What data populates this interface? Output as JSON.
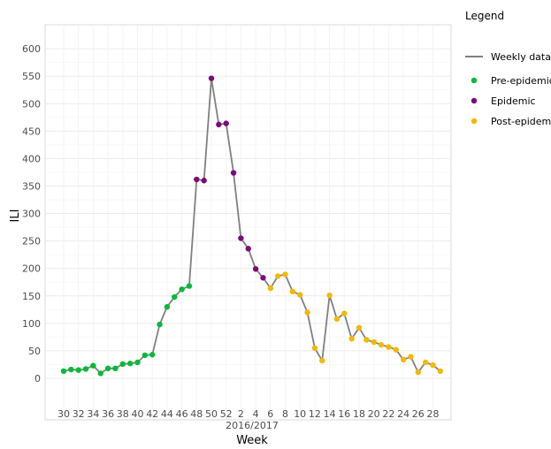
{
  "chart_data": {
    "type": "line",
    "title": "",
    "xlabel": "Week",
    "xlabel_sub": "2016/2017",
    "ylabel": "ILI",
    "ylim": [
      -50,
      650
    ],
    "yticks": [
      0,
      50,
      100,
      150,
      200,
      250,
      300,
      350,
      400,
      450,
      500,
      550,
      600
    ],
    "grid": true,
    "legend_position": "right",
    "legend_title": "Legend",
    "x_labels": [
      "30",
      "32",
      "34",
      "36",
      "38",
      "40",
      "42",
      "44",
      "46",
      "48",
      "50",
      "52",
      "2",
      "4",
      "6",
      "8",
      "10",
      "12",
      "14",
      "16",
      "18",
      "20",
      "22",
      "24",
      "26",
      "28"
    ],
    "line_series": {
      "name": "Weekly data",
      "color": "#808080",
      "weeks": [
        "30",
        "31",
        "32",
        "33",
        "34",
        "35",
        "36",
        "37",
        "38",
        "39",
        "40",
        "41",
        "42",
        "43",
        "44",
        "45",
        "46",
        "47",
        "48",
        "49",
        "50",
        "51",
        "52",
        "1",
        "2",
        "3",
        "4",
        "5",
        "6",
        "7",
        "8",
        "9",
        "10",
        "11",
        "12",
        "13",
        "14",
        "15",
        "16",
        "17",
        "18",
        "19",
        "20",
        "21",
        "22",
        "23",
        "24",
        "25",
        "26",
        "27",
        "28",
        "29"
      ],
      "values": [
        13,
        16,
        15,
        17,
        23,
        9,
        18,
        18,
        26,
        27,
        29,
        42,
        43,
        98,
        130,
        148,
        162,
        168,
        362,
        360,
        546,
        462,
        464,
        374,
        255,
        236,
        199,
        183,
        164,
        186,
        189,
        158,
        152,
        120,
        55,
        32,
        151,
        108,
        118,
        72,
        92,
        70,
        66,
        61,
        57,
        52,
        34,
        39,
        11,
        29,
        24,
        13
      ]
    },
    "point_series": [
      {
        "name": "Pre-epidemic",
        "color": "#00ba38",
        "start": 0,
        "end": 17
      },
      {
        "name": "Epidemic",
        "color": "#7b0a7b",
        "start": 18,
        "end": 27
      },
      {
        "name": "Post-epidemic",
        "color": "#f5b800",
        "start": 28,
        "end": 51
      }
    ]
  }
}
